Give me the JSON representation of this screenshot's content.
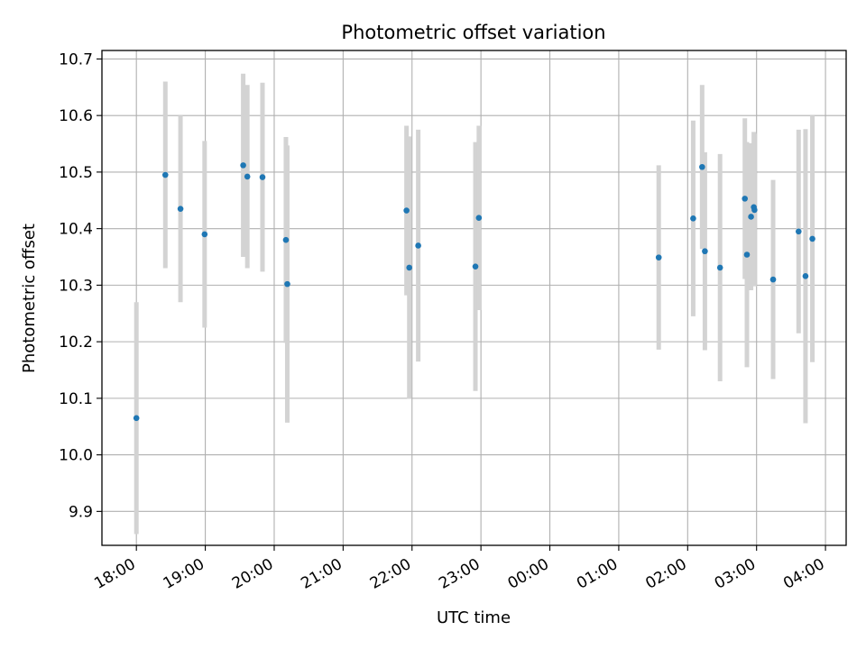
{
  "chart_data": {
    "type": "scatter",
    "title": "Photometric offset variation",
    "xlabel": "UTC time",
    "ylabel": "Photometric offset",
    "x_axis": {
      "unit": "hours after 18:00 UTC",
      "range": [
        -0.5,
        10.3
      ]
    },
    "ylim": [
      9.84,
      10.715
    ],
    "x_ticks": [
      {
        "value": 0,
        "label": "18:00"
      },
      {
        "value": 1,
        "label": "19:00"
      },
      {
        "value": 2,
        "label": "20:00"
      },
      {
        "value": 3,
        "label": "21:00"
      },
      {
        "value": 4,
        "label": "22:00"
      },
      {
        "value": 5,
        "label": "23:00"
      },
      {
        "value": 6,
        "label": "00:00"
      },
      {
        "value": 7,
        "label": "01:00"
      },
      {
        "value": 8,
        "label": "02:00"
      },
      {
        "value": 9,
        "label": "03:00"
      },
      {
        "value": 10,
        "label": "04:00"
      }
    ],
    "y_ticks": [
      9.9,
      10.0,
      10.1,
      10.2,
      10.3,
      10.4,
      10.5,
      10.6,
      10.7
    ],
    "y_tick_labels": [
      "9.9",
      "10.0",
      "10.1",
      "10.2",
      "10.3",
      "10.4",
      "10.5",
      "10.6",
      "10.7"
    ],
    "grid": true,
    "marker_color": "#1f77b4",
    "errorbar_color": "#d3d3d3",
    "points": [
      {
        "t": "18:00",
        "x": 0.0,
        "y": 10.065,
        "err": 0.205
      },
      {
        "t": "18:25",
        "x": 0.42,
        "y": 10.495,
        "err": 0.165
      },
      {
        "t": "18:38",
        "x": 0.64,
        "y": 10.435,
        "err": 0.165
      },
      {
        "t": "18:59",
        "x": 0.99,
        "y": 10.39,
        "err": 0.165
      },
      {
        "t": "19:33",
        "x": 1.55,
        "y": 10.512,
        "err": 0.162
      },
      {
        "t": "19:37",
        "x": 1.61,
        "y": 10.492,
        "err": 0.162
      },
      {
        "t": "19:50",
        "x": 1.83,
        "y": 10.491,
        "err": 0.167
      },
      {
        "t": "20:10",
        "x": 2.17,
        "y": 10.38,
        "err": 0.182
      },
      {
        "t": "20:11",
        "x": 2.19,
        "y": 10.302,
        "err": 0.245
      },
      {
        "t": "21:55",
        "x": 3.92,
        "y": 10.432,
        "err": 0.15
      },
      {
        "t": "21:58",
        "x": 3.96,
        "y": 10.331,
        "err": 0.232
      },
      {
        "t": "22:05",
        "x": 4.09,
        "y": 10.37,
        "err": 0.205
      },
      {
        "t": "22:55",
        "x": 4.92,
        "y": 10.333,
        "err": 0.22
      },
      {
        "t": "22:58",
        "x": 4.97,
        "y": 10.419,
        "err": 0.163
      },
      {
        "t": "01:35",
        "x": 7.58,
        "y": 10.349,
        "err": 0.163
      },
      {
        "t": "02:05",
        "x": 8.08,
        "y": 10.418,
        "err": 0.173
      },
      {
        "t": "02:13",
        "x": 8.21,
        "y": 10.509,
        "err": 0.145
      },
      {
        "t": "02:15",
        "x": 8.25,
        "y": 10.36,
        "err": 0.175
      },
      {
        "t": "02:28",
        "x": 8.47,
        "y": 10.331,
        "err": 0.201
      },
      {
        "t": "02:50",
        "x": 8.83,
        "y": 10.453,
        "err": 0.142
      },
      {
        "t": "02:52",
        "x": 8.86,
        "y": 10.354,
        "err": 0.199
      },
      {
        "t": "02:55",
        "x": 8.92,
        "y": 10.421,
        "err": 0.13
      },
      {
        "t": "02:58",
        "x": 8.96,
        "y": 10.438,
        "err": 0.133
      },
      {
        "t": "02:59",
        "x": 8.97,
        "y": 10.433,
        "err": 0.135
      },
      {
        "t": "03:15",
        "x": 9.24,
        "y": 10.31,
        "err": 0.176
      },
      {
        "t": "03:37",
        "x": 9.61,
        "y": 10.395,
        "err": 0.18
      },
      {
        "t": "03:42",
        "x": 9.71,
        "y": 10.316,
        "err": 0.26
      },
      {
        "t": "03:49",
        "x": 9.81,
        "y": 10.382,
        "err": 0.218
      }
    ]
  }
}
